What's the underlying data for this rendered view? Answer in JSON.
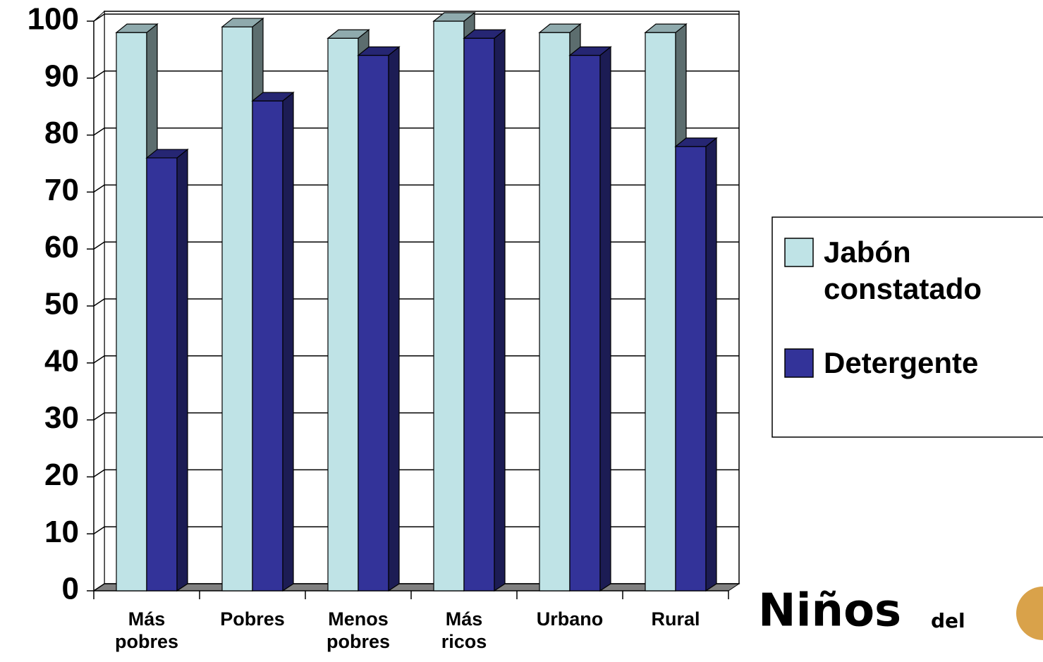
{
  "chart_data": {
    "type": "bar3d",
    "categories": [
      "Más pobres",
      "Pobres",
      "Menos pobres",
      "Más ricos",
      "Urbano",
      "Rural"
    ],
    "series": [
      {
        "name": "Jabón constatado",
        "color": "#bfe3e6",
        "values": [
          98,
          99,
          97,
          100,
          98,
          98
        ]
      },
      {
        "name": "Detergente",
        "color": "#333399",
        "values": [
          76,
          86,
          94,
          97,
          94,
          78
        ]
      }
    ],
    "ylim": [
      0,
      100
    ],
    "yticks": [
      0,
      10,
      20,
      30,
      40,
      50,
      60,
      70,
      80,
      90,
      100
    ],
    "grid": true,
    "legend": "right"
  },
  "logo": {
    "name": "Niños",
    "suffix": "del"
  }
}
